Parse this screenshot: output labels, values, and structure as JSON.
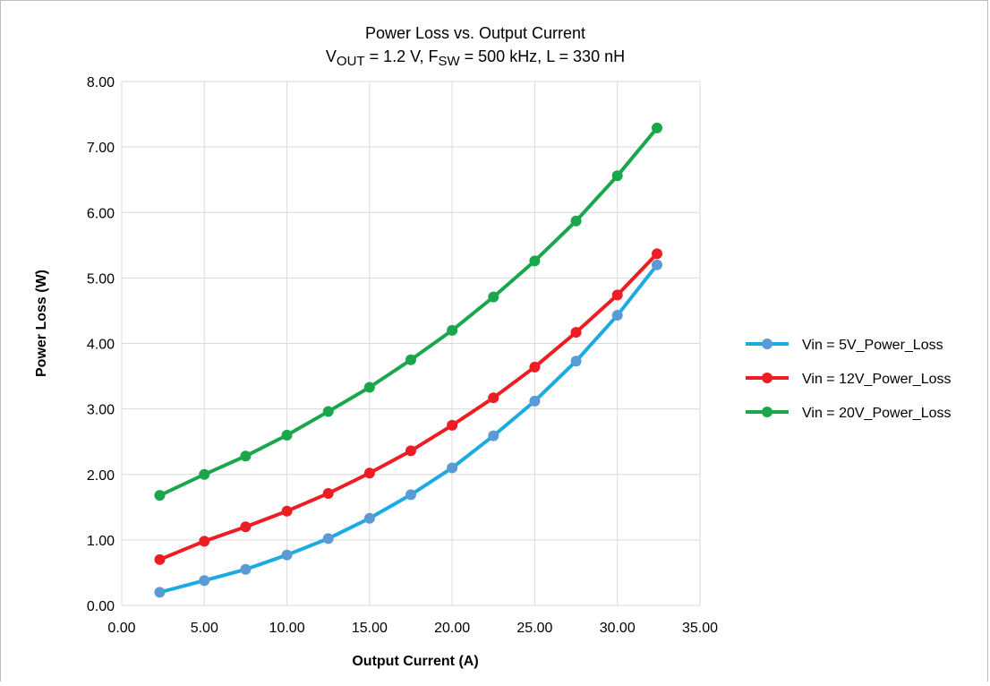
{
  "chart_data": {
    "type": "line",
    "title": "Power Loss vs. Output Current",
    "subtitle_parts": [
      {
        "text": "V",
        "sub": false
      },
      {
        "text": "OUT",
        "sub": true
      },
      {
        "text": " = 1.2 V, F",
        "sub": false
      },
      {
        "text": "SW",
        "sub": true
      },
      {
        "text": " = 500 kHz, L = 330 nH",
        "sub": false
      }
    ],
    "xlabel": "Output Current (A)",
    "ylabel": "Power Loss (W)",
    "xlim": [
      0,
      35
    ],
    "ylim": [
      0,
      8
    ],
    "xticks": [
      "0.00",
      "5.00",
      "10.00",
      "15.00",
      "20.00",
      "25.00",
      "30.00",
      "35.00"
    ],
    "yticks": [
      "0.00",
      "1.00",
      "2.00",
      "3.00",
      "4.00",
      "5.00",
      "6.00",
      "7.00",
      "8.00"
    ],
    "grid": true,
    "legend_position": "right",
    "x": [
      2.3,
      5.0,
      7.5,
      10.0,
      12.5,
      15.0,
      17.5,
      20.0,
      22.5,
      25.0,
      27.5,
      30.0,
      32.4
    ],
    "series": [
      {
        "name": "Vin = 5V_Power_Loss",
        "color": "#1aabe2",
        "marker_color": "#5b9bd5",
        "values": [
          0.2,
          0.38,
          0.55,
          0.77,
          1.02,
          1.33,
          1.69,
          2.1,
          2.59,
          3.12,
          3.73,
          4.43,
          5.2
        ]
      },
      {
        "name": "Vin = 12V_Power_Loss",
        "color": "#ee1c23",
        "marker_color": "#ee1c23",
        "values": [
          0.7,
          0.98,
          1.2,
          1.44,
          1.71,
          2.02,
          2.36,
          2.75,
          3.17,
          3.64,
          4.17,
          4.74,
          5.37
        ]
      },
      {
        "name": "Vin = 20V_Power_Loss",
        "color": "#1aa64a",
        "marker_color": "#1aa64a",
        "values": [
          1.68,
          2.0,
          2.28,
          2.6,
          2.96,
          3.33,
          3.75,
          4.2,
          4.71,
          5.26,
          5.87,
          6.56,
          7.29
        ]
      }
    ]
  }
}
